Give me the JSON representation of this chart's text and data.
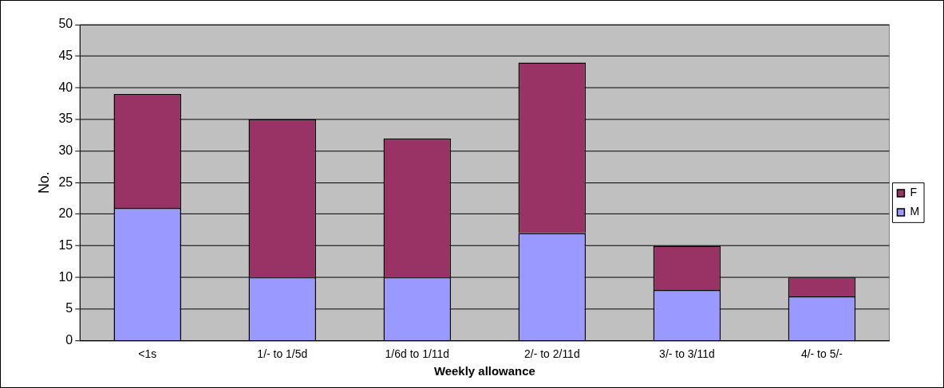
{
  "chart_data": {
    "type": "bar",
    "stacked": true,
    "xlabel": "Weekly allowance",
    "ylabel": "No.",
    "categories": [
      "<1s",
      "1/- to 1/5d",
      "1/6d to 1/11d",
      "2/- to 2/11d",
      "3/- to 3/11d",
      "4/- to 5/-"
    ],
    "series": [
      {
        "name": "M",
        "color": "#9999ff",
        "values": [
          21,
          10,
          10,
          17,
          8,
          7
        ]
      },
      {
        "name": "F",
        "color": "#993366",
        "values": [
          18,
          25,
          22,
          27,
          7,
          3
        ]
      }
    ],
    "ylim": [
      0,
      50
    ],
    "yticks": [
      0,
      5,
      10,
      15,
      20,
      25,
      30,
      35,
      40,
      45,
      50
    ],
    "grid": "y",
    "legend": "right"
  }
}
